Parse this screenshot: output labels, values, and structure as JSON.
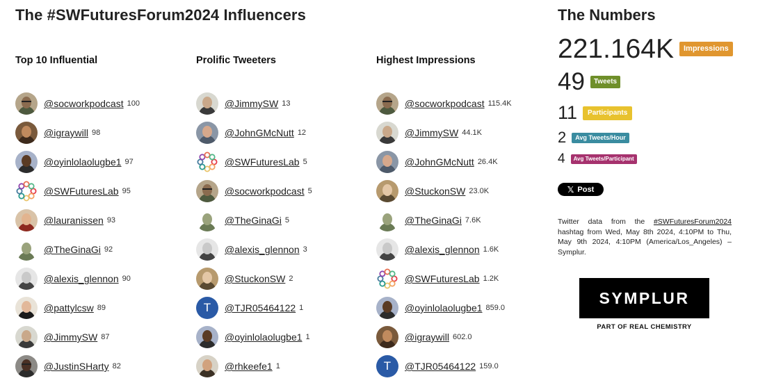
{
  "title": "The #SWFuturesForum2024 Influencers",
  "columns": [
    {
      "heading": "Top 10 Influential",
      "rows": [
        {
          "handle": "@socworkpodcast",
          "value": "100",
          "avatar": "photo-glasses"
        },
        {
          "handle": "@igraywill",
          "value": "98",
          "avatar": "photo-brown"
        },
        {
          "handle": "@oyinlolaolugbe1",
          "value": "97",
          "avatar": "photo-dark"
        },
        {
          "handle": "@SWFuturesLab",
          "value": "95",
          "avatar": "logo-ring"
        },
        {
          "handle": "@lauranissen",
          "value": "93",
          "avatar": "photo-red"
        },
        {
          "handle": "@TheGinaGi",
          "value": "92",
          "avatar": "illustration"
        },
        {
          "handle": "@alexis_glennon",
          "value": "90",
          "avatar": "photo-bw"
        },
        {
          "handle": "@pattylcsw",
          "value": "89",
          "avatar": "photo-dark-hair"
        },
        {
          "handle": "@JimmySW",
          "value": "87",
          "avatar": "photo-grey"
        },
        {
          "handle": "@JustinSHarty",
          "value": "82",
          "avatar": "photo-dark-glasses"
        }
      ]
    },
    {
      "heading": "Prolific Tweeters",
      "rows": [
        {
          "handle": "@JimmySW",
          "value": "13",
          "avatar": "photo-grey"
        },
        {
          "handle": "@JohnGMcNutt",
          "value": "12",
          "avatar": "photo-older"
        },
        {
          "handle": "@SWFuturesLab",
          "value": "5",
          "avatar": "logo-ring"
        },
        {
          "handle": "@socworkpodcast",
          "value": "5",
          "avatar": "photo-glasses"
        },
        {
          "handle": "@TheGinaGi",
          "value": "5",
          "avatar": "illustration"
        },
        {
          "handle": "@alexis_glennon",
          "value": "3",
          "avatar": "photo-bw"
        },
        {
          "handle": "@StuckonSW",
          "value": "2",
          "avatar": "photo-frame"
        },
        {
          "handle": "@TJR05464122",
          "value": "1",
          "avatar": "letter",
          "letter": "T"
        },
        {
          "handle": "@oyinlolaolugbe1",
          "value": "1",
          "avatar": "photo-dark"
        },
        {
          "handle": "@rhkeefe1",
          "value": "1",
          "avatar": "photo-suit"
        }
      ]
    },
    {
      "heading": "Highest Impressions",
      "rows": [
        {
          "handle": "@socworkpodcast",
          "value": "115.4K",
          "avatar": "photo-glasses"
        },
        {
          "handle": "@JimmySW",
          "value": "44.1K",
          "avatar": "photo-grey"
        },
        {
          "handle": "@JohnGMcNutt",
          "value": "26.4K",
          "avatar": "photo-older"
        },
        {
          "handle": "@StuckonSW",
          "value": "23.0K",
          "avatar": "photo-frame"
        },
        {
          "handle": "@TheGinaGi",
          "value": "7.6K",
          "avatar": "illustration"
        },
        {
          "handle": "@alexis_glennon",
          "value": "1.6K",
          "avatar": "photo-bw"
        },
        {
          "handle": "@SWFuturesLab",
          "value": "1.2K",
          "avatar": "logo-ring"
        },
        {
          "handle": "@oyinlolaolugbe1",
          "value": "859.0",
          "avatar": "photo-dark"
        },
        {
          "handle": "@igraywill",
          "value": "602.0",
          "avatar": "photo-brown"
        },
        {
          "handle": "@TJR05464122",
          "value": "159.0",
          "avatar": "letter",
          "letter": "T"
        }
      ]
    }
  ],
  "numbers": {
    "title": "The Numbers",
    "stats": [
      {
        "value": "221.164K",
        "label": "Impressions",
        "color": "#e0962f"
      },
      {
        "value": "49",
        "label": "Tweets",
        "color": "#6f8f2a"
      },
      {
        "value": "11",
        "label": "Participants",
        "color": "#e8c22e"
      },
      {
        "value": "2",
        "label": "Avg Tweets/Hour",
        "color": "#3a8ca0"
      },
      {
        "value": "4",
        "label": "Avg Tweets/Participant",
        "color": "#a6326e"
      }
    ],
    "post_button": "Post",
    "info_prefix": "Twitter data from the ",
    "info_hashtag": "#SWFuturesForum2024",
    "info_suffix": " hashtag from Wed, May 8th 2024, 4:10PM to Thu, May 9th 2024, 4:10PM (America/Los_Angeles) – Symplur.",
    "logo_text": "SYMPLUR",
    "logo_sub": "PART OF REAL CHEMISTRY"
  },
  "avatar_palette": {
    "photo-glasses": [
      "#b5a58a",
      "#8a6b4f",
      "#4e5a3f"
    ],
    "photo-brown": [
      "#7a5a3c",
      "#c08a5e",
      "#3d2a1c"
    ],
    "photo-dark": [
      "#a7b2c9",
      "#5a3b24",
      "#2c2c2c"
    ],
    "photo-red": [
      "#d9c3a8",
      "#e2b48f",
      "#8e2a20"
    ],
    "illustration": [
      "#ffffff",
      "#9aa37c",
      "#6a7a55"
    ],
    "photo-bw": [
      "#e6e6e6",
      "#c9c9c9",
      "#444444"
    ],
    "photo-dark-hair": [
      "#e9e3d8",
      "#e2b89a",
      "#1b1b1b"
    ],
    "photo-grey": [
      "#d8d8d0",
      "#c9a88a",
      "#3a3a3a"
    ],
    "photo-dark-glasses": [
      "#8c8a86",
      "#4a3024",
      "#2b2b2b"
    ],
    "photo-older": [
      "#8a96a6",
      "#d6a88c",
      "#4e5a6a"
    ],
    "photo-frame": [
      "#b79a6e",
      "#e4c7a6",
      "#5a4a32"
    ],
    "photo-suit": [
      "#d7d2c6",
      "#d1a27e",
      "#3b3024"
    ]
  }
}
